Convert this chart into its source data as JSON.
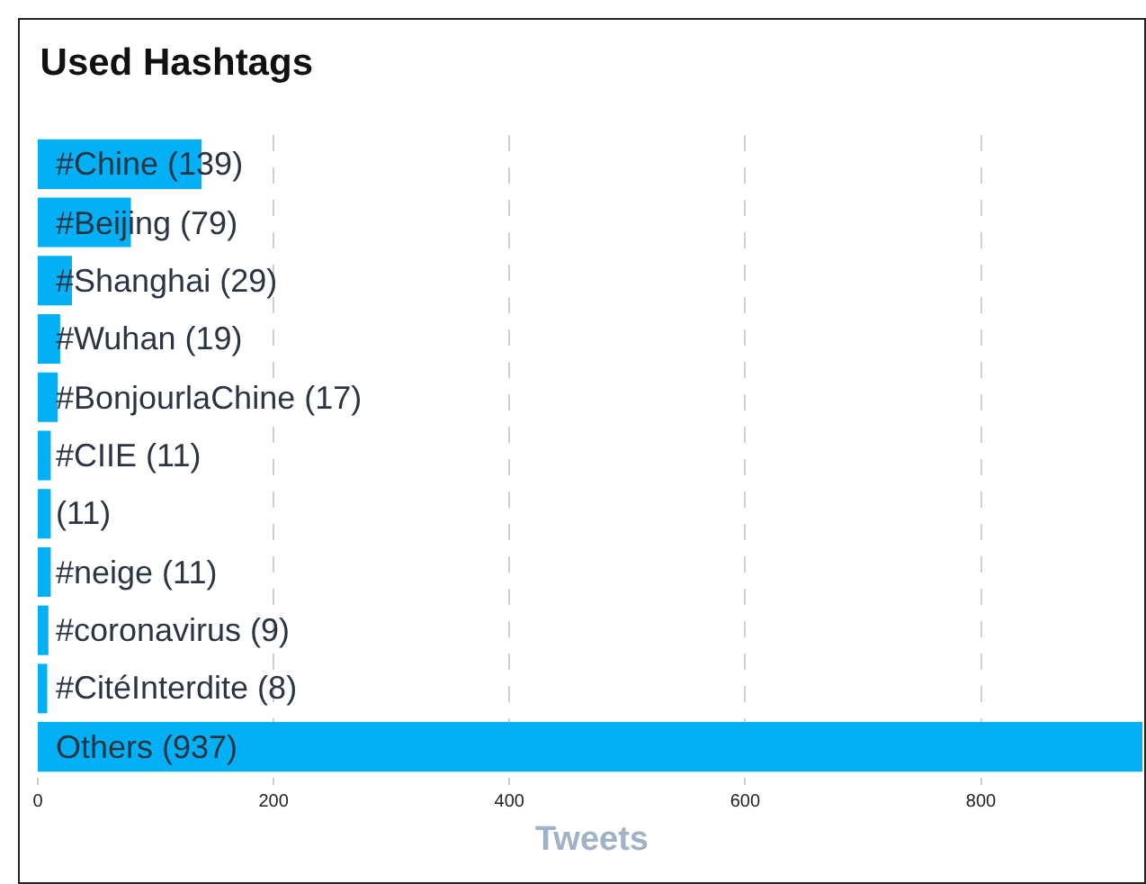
{
  "chart_data": {
    "type": "bar",
    "orientation": "horizontal",
    "title": "Used Hashtags",
    "xlabel": "Tweets",
    "categories": [
      "#Chine (139)",
      "#Beijing (79)",
      "#Shanghai (29)",
      "#Wuhan (19)",
      "#BonjourlaChine (17)",
      "#CIIE (11)",
      "(11)",
      "#neige (11)",
      "#coronavirus (9)",
      "#CitéInterdite (8)",
      "Others (937)"
    ],
    "values": [
      139,
      79,
      29,
      19,
      17,
      11,
      11,
      11,
      9,
      8,
      937
    ],
    "color": "#03b0f5",
    "xlim": [
      0,
      940
    ],
    "xticks": [
      0,
      200,
      400,
      600,
      800
    ],
    "grid": "x",
    "tick_labels": "x"
  }
}
